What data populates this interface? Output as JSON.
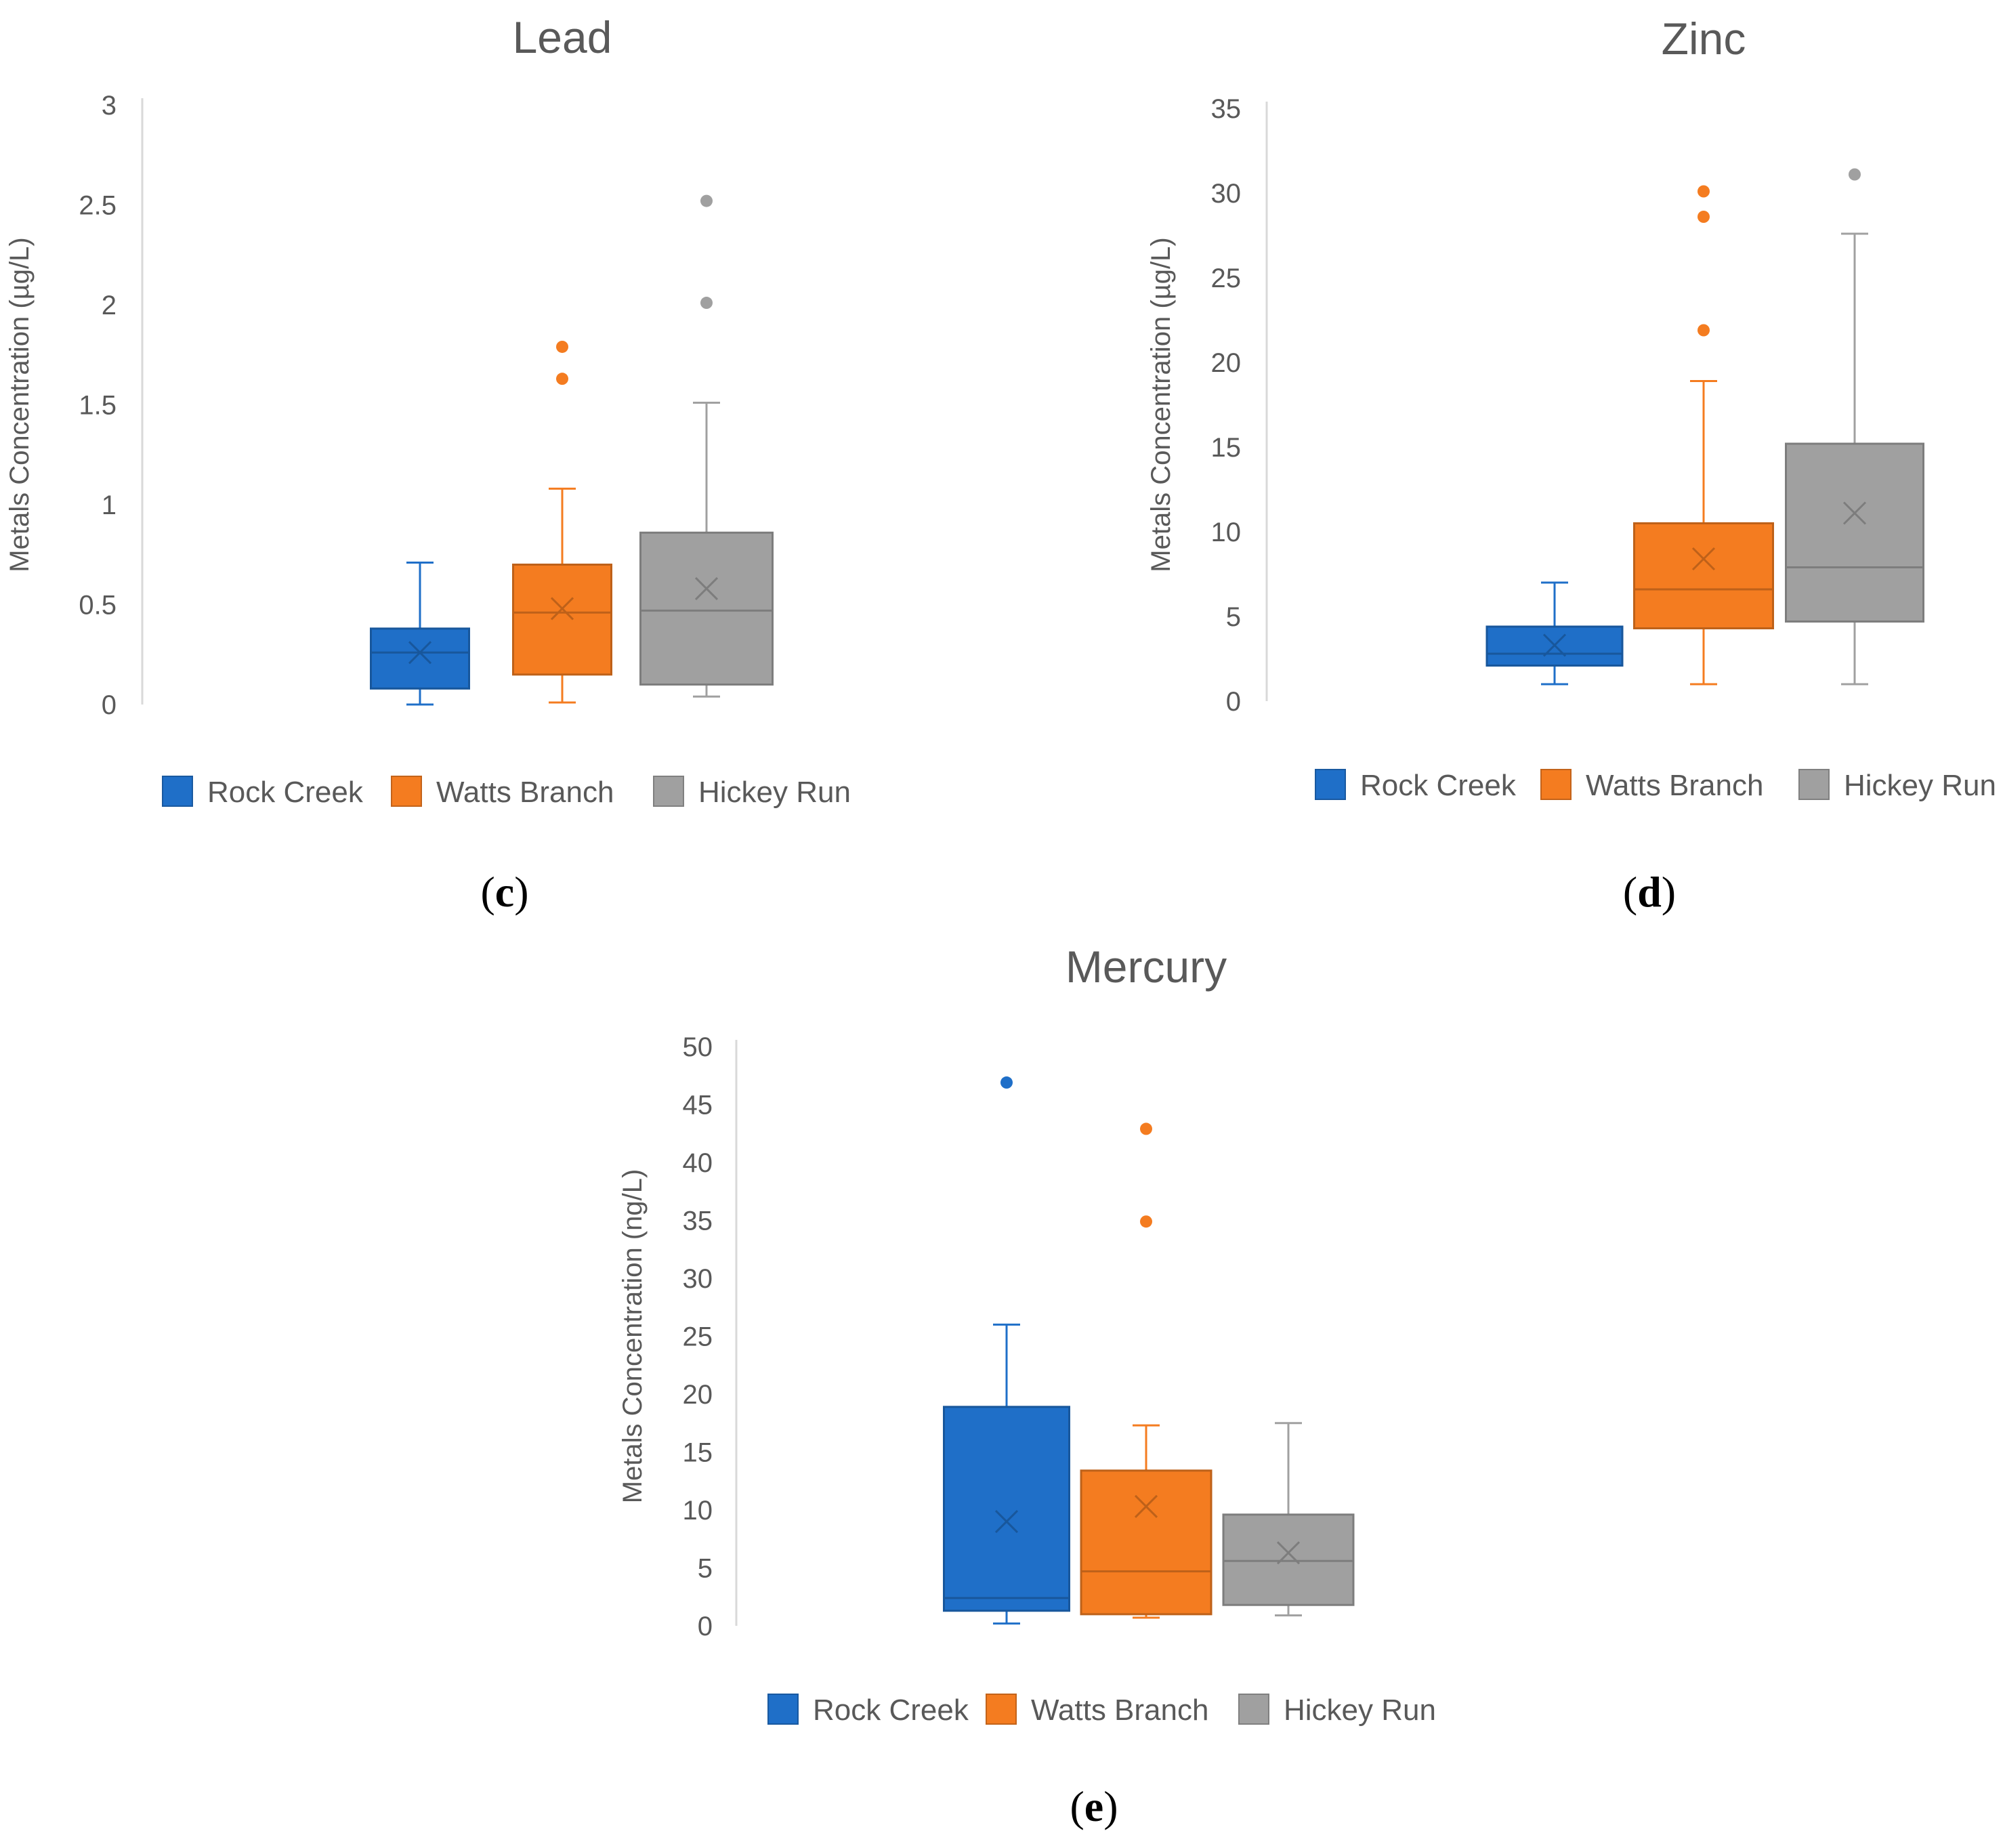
{
  "figure": {
    "legend_labels": [
      "Rock Creek",
      "Watts Branch",
      "Hickey Run"
    ],
    "colors": {
      "Rock Creek": "#1f6fc8",
      "Watts Branch": "#f47c20",
      "Hickey Run": "#a0a0a0"
    }
  },
  "chart_data": [
    {
      "type": "box",
      "panel_label": "c",
      "title": "Lead",
      "ylabel": "Metals Concentration (µg/L)",
      "ylim": [
        0,
        3
      ],
      "yticks": [
        0,
        0.5,
        1,
        1.5,
        2,
        2.5,
        3
      ],
      "ytick_labels": [
        "0",
        "0.5",
        "1",
        "1.5",
        "2",
        "2.5",
        "3"
      ],
      "legend": "bottom",
      "grid": false,
      "series": [
        {
          "name": "Rock Creek",
          "min": 0.0,
          "q1": 0.08,
          "median": 0.26,
          "q3": 0.38,
          "max": 0.71,
          "mean": 0.26,
          "outliers": []
        },
        {
          "name": "Watts Branch",
          "min": 0.01,
          "q1": 0.15,
          "median": 0.46,
          "q3": 0.7,
          "max": 1.08,
          "mean": 0.48,
          "outliers": [
            1.63,
            1.79
          ]
        },
        {
          "name": "Hickey Run",
          "min": 0.04,
          "q1": 0.1,
          "median": 0.47,
          "q3": 0.86,
          "max": 1.51,
          "mean": 0.58,
          "outliers": [
            2.01,
            2.52
          ]
        }
      ]
    },
    {
      "type": "box",
      "panel_label": "d",
      "title": "Zinc",
      "ylabel": "Metals Concentration (µg/L)",
      "ylim": [
        0,
        35
      ],
      "yticks": [
        0,
        5,
        10,
        15,
        20,
        25,
        30,
        35
      ],
      "ytick_labels": [
        "0",
        "5",
        "10",
        "15",
        "20",
        "25",
        "30",
        "35"
      ],
      "legend": "bottom",
      "grid": false,
      "series": [
        {
          "name": "Rock Creek",
          "min": 1.0,
          "q1": 2.1,
          "median": 2.8,
          "q3": 4.4,
          "max": 7.0,
          "mean": 3.3,
          "outliers": []
        },
        {
          "name": "Watts Branch",
          "min": 1.0,
          "q1": 4.3,
          "median": 6.6,
          "q3": 10.5,
          "max": 18.9,
          "mean": 8.4,
          "outliers": [
            21.9,
            28.6,
            30.1
          ]
        },
        {
          "name": "Hickey Run",
          "min": 1.0,
          "q1": 4.7,
          "median": 7.9,
          "q3": 15.2,
          "max": 27.6,
          "mean": 11.1,
          "outliers": [
            31.1
          ]
        }
      ]
    },
    {
      "type": "box",
      "panel_label": "e",
      "title": "Mercury",
      "ylabel": "Metals Concentration (ng/L)",
      "ylim": [
        0,
        50
      ],
      "yticks": [
        0,
        5,
        10,
        15,
        20,
        25,
        30,
        35,
        40,
        45,
        50
      ],
      "ytick_labels": [
        "0",
        "5",
        "10",
        "15",
        "20",
        "25",
        "30",
        "35",
        "40",
        "45",
        "50"
      ],
      "legend": "bottom",
      "grid": false,
      "series": [
        {
          "name": "Rock Creek",
          "min": 0.2,
          "q1": 1.3,
          "median": 2.4,
          "q3": 18.9,
          "max": 26.0,
          "mean": 9.0,
          "outliers": [
            46.9
          ]
        },
        {
          "name": "Watts Branch",
          "min": 0.7,
          "q1": 1.0,
          "median": 4.7,
          "q3": 13.4,
          "max": 17.3,
          "mean": 10.3,
          "outliers": [
            34.9,
            42.9
          ]
        },
        {
          "name": "Hickey Run",
          "min": 0.9,
          "q1": 1.8,
          "median": 5.6,
          "q3": 9.6,
          "max": 17.5,
          "mean": 6.3,
          "outliers": []
        }
      ]
    }
  ]
}
